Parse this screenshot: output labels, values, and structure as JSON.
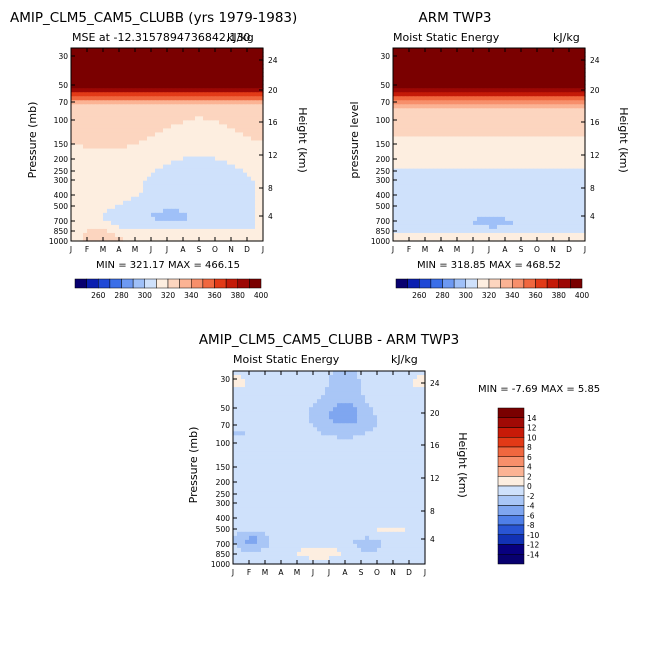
{
  "chart_data": [
    {
      "type": "heatmap",
      "title": "AMIP_CLM5_CAM5_CLUBB (yrs 1979-1983)",
      "subtitle_left": "MSE at -12.3157894736842,130",
      "subtitle_right": "kJ/kg",
      "ylabel": "Pressure (mb)",
      "ylabel_right": "Height (km)",
      "minmax": "MIN = 321.17 MAX = 466.15",
      "months": [
        "J",
        "F",
        "M",
        "A",
        "M",
        "J",
        "J",
        "A",
        "S",
        "O",
        "N",
        "D",
        "J"
      ],
      "pressure_ticks": [
        "30",
        "50",
        "70",
        "100",
        "150",
        "200",
        "250",
        "300",
        "400",
        "500",
        "700",
        "850",
        "1000"
      ],
      "height_ticks": [
        "24",
        "20",
        "16",
        "12",
        "8",
        "4"
      ],
      "colorbar_labels": [
        "260",
        "280",
        "300",
        "320",
        "340",
        "360",
        "380",
        "400"
      ],
      "ylim": [
        1000,
        20
      ],
      "pattern": "model_mse"
    },
    {
      "type": "heatmap",
      "title": "ARM TWP3",
      "subtitle_left": "Moist Static Energy",
      "subtitle_right": "kJ/kg",
      "ylabel": "pressure level",
      "ylabel_right": "Height (km)",
      "minmax": "MIN = 318.85 MAX = 468.52",
      "months": [
        "J",
        "F",
        "M",
        "A",
        "M",
        "J",
        "J",
        "A",
        "S",
        "O",
        "N",
        "D",
        "J"
      ],
      "pressure_ticks": [
        "30",
        "50",
        "70",
        "100",
        "150",
        "200",
        "250",
        "300",
        "400",
        "500",
        "700",
        "850",
        "1000"
      ],
      "height_ticks": [
        "24",
        "20",
        "16",
        "12",
        "8",
        "4"
      ],
      "colorbar_labels": [
        "260",
        "280",
        "300",
        "320",
        "340",
        "360",
        "380",
        "400"
      ],
      "ylim": [
        1000,
        20
      ],
      "pattern": "obs_mse"
    },
    {
      "type": "heatmap",
      "title": "AMIP_CLM5_CAM5_CLUBB - ARM TWP3",
      "subtitle_left": "Moist Static Energy",
      "subtitle_right": "kJ/kg",
      "ylabel": "Pressure (mb)",
      "ylabel_right": "Height (km)",
      "minmax": "MIN =  -7.69 MAX =   5.85",
      "months": [
        "J",
        "F",
        "M",
        "A",
        "M",
        "J",
        "J",
        "A",
        "S",
        "O",
        "N",
        "D",
        "J"
      ],
      "pressure_ticks": [
        "30",
        "50",
        "70",
        "100",
        "150",
        "200",
        "250",
        "300",
        "400",
        "500",
        "700",
        "850",
        "1000"
      ],
      "height_ticks": [
        "24",
        "20",
        "16",
        "12",
        "8",
        "4"
      ],
      "colorbar_labels": [
        "14",
        "12",
        "10",
        "8",
        "6",
        "4",
        "2",
        "0",
        "-2",
        "-4",
        "-6",
        "-8",
        "-10",
        "-12",
        "-14"
      ],
      "ylim": [
        1000,
        20
      ],
      "pattern": "difference"
    }
  ],
  "colors": {
    "mse_scale": [
      "#08006f",
      "#0a1fb0",
      "#1f48d6",
      "#3a6ee8",
      "#6d99f2",
      "#9fc0f8",
      "#cfe1fb",
      "#fdeee0",
      "#fcd5bf",
      "#fbb394",
      "#f78f6b",
      "#f0673f",
      "#e23a17",
      "#c41a08",
      "#9c0704",
      "#7a0000"
    ],
    "diff_scale": [
      "#7a0000",
      "#a00a05",
      "#c81a08",
      "#e23a17",
      "#f0673f",
      "#f78f6b",
      "#fbb394",
      "#fdeee0",
      "#cfe1fb",
      "#a9c6f6",
      "#7fa6f0",
      "#4f7fe8",
      "#2955d4",
      "#1232b5",
      "#08007f"
    ]
  }
}
